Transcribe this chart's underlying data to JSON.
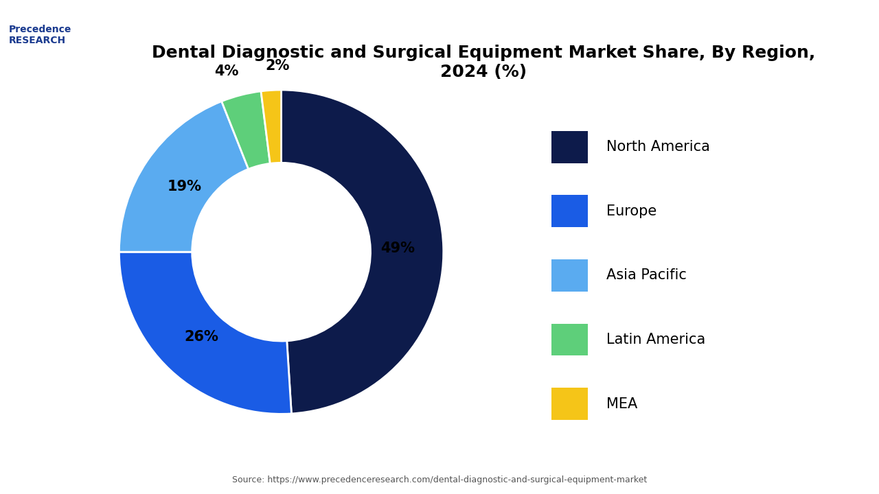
{
  "title": "Dental Diagnostic and Surgical Equipment Market Share, By Region,\n2024 (%)",
  "labels": [
    "North America",
    "Europe",
    "Asia Pacific",
    "Latin America",
    "MEA"
  ],
  "values": [
    49,
    26,
    19,
    4,
    2
  ],
  "colors": [
    "#0d1b4b",
    "#1a5ce5",
    "#5aabf0",
    "#5ecf7a",
    "#f5c518"
  ],
  "pct_labels": [
    "49%",
    "26%",
    "19%",
    "4%",
    "2%"
  ],
  "source": "Source: https://www.precedenceresearch.com/dental-diagnostic-and-surgical-equipment-market",
  "background_color": "#ffffff",
  "title_fontsize": 18,
  "legend_fontsize": 15,
  "pct_fontsize": 15
}
